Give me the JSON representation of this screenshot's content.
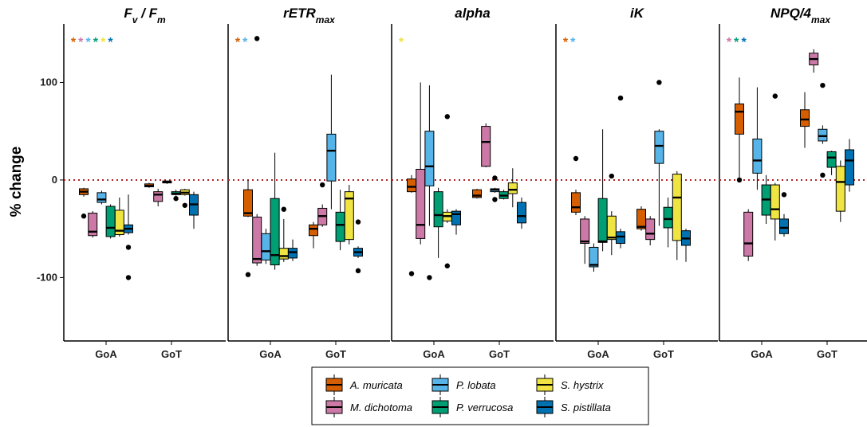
{
  "chart_data": {
    "type": "box",
    "ylabel": "% change",
    "ylim": [
      -165,
      160
    ],
    "yticks": [
      100,
      0,
      -100
    ],
    "categories": [
      "GoA",
      "GoT"
    ],
    "reference_line_y": 0,
    "colors": {
      "A. muricata": "#D55E00",
      "M. dichotoma": "#CC79A7",
      "P. lobata": "#56B4E9",
      "P. verrucosa": "#009E73",
      "S. hystrix": "#F0E442",
      "S. pistillata": "#0072B2"
    },
    "legend": [
      {
        "species": "A. muricata"
      },
      {
        "species": "M. dichotoma"
      },
      {
        "species": "P. lobata"
      },
      {
        "species": "P. verrucosa"
      },
      {
        "species": "S. hystrix"
      },
      {
        "species": "S. pistillata"
      }
    ],
    "panels": [
      {
        "title_main": "F",
        "title_sub1": "v",
        "title_mid": " / F",
        "title_sub2": "m",
        "significance": [
          "A. muricata",
          "M. dichotoma",
          "P. lobata",
          "P. verrucosa",
          "S. hystrix",
          "S. pistillata"
        ],
        "groups": {
          "GoA": [
            {
              "species": "A. muricata",
              "whisker_low": -17,
              "q1": -15,
              "median": -12,
              "q3": -9,
              "whisker_high": -8,
              "outliers": [
                -37
              ]
            },
            {
              "species": "M. dichotoma",
              "whisker_low": -59,
              "q1": -57,
              "median": -53,
              "q3": -34,
              "whisker_high": -32,
              "outliers": []
            },
            {
              "species": "P. lobata",
              "whisker_low": -25,
              "q1": -23,
              "median": -20,
              "q3": -13,
              "whisker_high": -11,
              "outliers": []
            },
            {
              "species": "P. verrucosa",
              "whisker_low": -60,
              "q1": -58,
              "median": -49,
              "q3": -27,
              "whisker_high": -25,
              "outliers": []
            },
            {
              "species": "S. hystrix",
              "whisker_low": -58,
              "q1": -56,
              "median": -52,
              "q3": -31,
              "whisker_high": -18,
              "outliers": []
            },
            {
              "species": "S. pistillata",
              "whisker_low": -56,
              "q1": -54,
              "median": -50,
              "q3": -46,
              "whisker_high": -15,
              "outliers": [
                -69,
                -100
              ]
            }
          ],
          "GoT": [
            {
              "species": "A. muricata",
              "whisker_low": -8,
              "q1": -7,
              "median": -6,
              "q3": -4,
              "whisker_high": -3,
              "outliers": []
            },
            {
              "species": "M. dichotoma",
              "whisker_low": -27,
              "q1": -22,
              "median": -15,
              "q3": -12,
              "whisker_high": -9,
              "outliers": []
            },
            {
              "species": "P. lobata",
              "whisker_low": -4,
              "q1": -3,
              "median": -2,
              "q3": -1,
              "whisker_high": -1,
              "outliers": []
            },
            {
              "species": "P. verrucosa",
              "whisker_low": -16,
              "q1": -15,
              "median": -14,
              "q3": -12,
              "whisker_high": -10,
              "outliers": [
                -19
              ]
            },
            {
              "species": "S. hystrix",
              "whisker_low": -16,
              "q1": -15,
              "median": -13,
              "q3": -10,
              "whisker_high": -9,
              "outliers": [
                -26
              ]
            },
            {
              "species": "S. pistillata",
              "whisker_low": -50,
              "q1": -36,
              "median": -25,
              "q3": -15,
              "whisker_high": -12,
              "outliers": []
            }
          ]
        }
      },
      {
        "title_main": "rETR",
        "title_sub1": "max",
        "title_mid": "",
        "title_sub2": "",
        "significance": [
          "A. muricata",
          "P. lobata"
        ],
        "groups": {
          "GoA": [
            {
              "species": "A. muricata",
              "whisker_low": -38,
              "q1": -37,
              "median": -34,
              "q3": -10,
              "whisker_high": 0,
              "outliers": [
                -97
              ]
            },
            {
              "species": "M. dichotoma",
              "whisker_low": -88,
              "q1": -85,
              "median": -81,
              "q3": -38,
              "whisker_high": -35,
              "outliers": [
                145
              ]
            },
            {
              "species": "P. lobata",
              "whisker_low": -86,
              "q1": -82,
              "median": -73,
              "q3": -55,
              "whisker_high": -50,
              "outliers": []
            },
            {
              "species": "P. verrucosa",
              "whisker_low": -92,
              "q1": -87,
              "median": -77,
              "q3": -19,
              "whisker_high": 28,
              "outliers": []
            },
            {
              "species": "S. hystrix",
              "whisker_low": -84,
              "q1": -81,
              "median": -78,
              "q3": -70,
              "whisker_high": -40,
              "outliers": [
                -30
              ]
            },
            {
              "species": "S. pistillata",
              "whisker_low": -83,
              "q1": -80,
              "median": -74,
              "q3": -70,
              "whisker_high": -61,
              "outliers": []
            }
          ],
          "GoT": [
            {
              "species": "A. muricata",
              "whisker_low": -70,
              "q1": -57,
              "median": -50,
              "q3": -46,
              "whisker_high": -43,
              "outliers": []
            },
            {
              "species": "M. dichotoma",
              "whisker_low": -48,
              "q1": -46,
              "median": -37,
              "q3": -29,
              "whisker_high": -25,
              "outliers": [
                -5
              ]
            },
            {
              "species": "P. lobata",
              "whisker_low": -30,
              "q1": -1,
              "median": 30,
              "q3": 47,
              "whisker_high": 108,
              "outliers": []
            },
            {
              "species": "P. verrucosa",
              "whisker_low": -72,
              "q1": -63,
              "median": -46,
              "q3": -33,
              "whisker_high": -10,
              "outliers": []
            },
            {
              "species": "S. hystrix",
              "whisker_low": -66,
              "q1": -61,
              "median": -19,
              "q3": -12,
              "whisker_high": -5,
              "outliers": []
            },
            {
              "species": "S. pistillata",
              "whisker_low": -80,
              "q1": -78,
              "median": -74,
              "q3": -70,
              "whisker_high": -68,
              "outliers": [
                -43,
                -93
              ]
            }
          ]
        }
      },
      {
        "title_main": "alpha",
        "title_sub1": "",
        "title_mid": "",
        "title_sub2": "",
        "significance": [
          "S. hystrix"
        ],
        "groups": {
          "GoA": [
            {
              "species": "A. muricata",
              "whisker_low": -13,
              "q1": -12,
              "median": -7,
              "q3": 1,
              "whisker_high": 5,
              "outliers": [
                -96
              ]
            },
            {
              "species": "M. dichotoma",
              "whisker_low": -66,
              "q1": -60,
              "median": -46,
              "q3": 11,
              "whisker_high": 100,
              "outliers": []
            },
            {
              "species": "P. lobata",
              "whisker_low": -47,
              "q1": -6,
              "median": 14,
              "q3": 50,
              "whisker_high": 97,
              "outliers": [
                -100
              ]
            },
            {
              "species": "P. verrucosa",
              "whisker_low": -80,
              "q1": -48,
              "median": -36,
              "q3": -12,
              "whisker_high": -8,
              "outliers": []
            },
            {
              "species": "S. hystrix",
              "whisker_low": -44,
              "q1": -42,
              "median": -37,
              "q3": -33,
              "whisker_high": -30,
              "outliers": [
                -88,
                65
              ]
            },
            {
              "species": "S. pistillata",
              "whisker_low": -56,
              "q1": -46,
              "median": -35,
              "q3": -32,
              "whisker_high": -30,
              "outliers": []
            }
          ],
          "GoT": [
            {
              "species": "A. muricata",
              "whisker_low": -19,
              "q1": -18,
              "median": -16,
              "q3": -10,
              "whisker_high": -9,
              "outliers": []
            },
            {
              "species": "M. dichotoma",
              "whisker_low": 13,
              "q1": 14,
              "median": 39,
              "q3": 55,
              "whisker_high": 58,
              "outliers": []
            },
            {
              "species": "P. lobata",
              "whisker_low": -13,
              "q1": -12,
              "median": -10,
              "q3": -9,
              "whisker_high": -8,
              "outliers": [
                -20,
                2
              ]
            },
            {
              "species": "P. verrucosa",
              "whisker_low": -20,
              "q1": -19,
              "median": -16,
              "q3": -12,
              "whisker_high": -10,
              "outliers": []
            },
            {
              "species": "S. hystrix",
              "whisker_low": -28,
              "q1": -14,
              "median": -10,
              "q3": -3,
              "whisker_high": 12,
              "outliers": []
            },
            {
              "species": "S. pistillata",
              "whisker_low": -50,
              "q1": -44,
              "median": -37,
              "q3": -23,
              "whisker_high": -18,
              "outliers": []
            }
          ]
        }
      },
      {
        "title_main": "iK",
        "title_sub1": "",
        "title_mid": "",
        "title_sub2": "",
        "significance": [
          "A. muricata",
          "P. lobata"
        ],
        "groups": {
          "GoA": [
            {
              "species": "A. muricata",
              "whisker_low": -36,
              "q1": -33,
              "median": -28,
              "q3": -13,
              "whisker_high": -10,
              "outliers": [
                22
              ]
            },
            {
              "species": "M. dichotoma",
              "whisker_low": -86,
              "q1": -65,
              "median": -63,
              "q3": -40,
              "whisker_high": -37,
              "outliers": []
            },
            {
              "species": "P. lobata",
              "whisker_low": -94,
              "q1": -89,
              "median": -87,
              "q3": -69,
              "whisker_high": -65,
              "outliers": []
            },
            {
              "species": "P. verrucosa",
              "whisker_low": -73,
              "q1": -64,
              "median": -63,
              "q3": -19,
              "whisker_high": 52,
              "outliers": []
            },
            {
              "species": "S. hystrix",
              "whisker_low": -77,
              "q1": -61,
              "median": -59,
              "q3": -37,
              "whisker_high": -32,
              "outliers": [
                4
              ]
            },
            {
              "species": "S. pistillata",
              "whisker_low": -70,
              "q1": -65,
              "median": -58,
              "q3": -53,
              "whisker_high": -50,
              "outliers": [
                84
              ]
            }
          ],
          "GoT": [
            {
              "species": "A. muricata",
              "whisker_low": -52,
              "q1": -50,
              "median": -48,
              "q3": -30,
              "whisker_high": -27,
              "outliers": []
            },
            {
              "species": "M. dichotoma",
              "whisker_low": -67,
              "q1": -61,
              "median": -55,
              "q3": -40,
              "whisker_high": -37,
              "outliers": []
            },
            {
              "species": "P. lobata",
              "whisker_low": -47,
              "q1": 17,
              "median": 35,
              "q3": 50,
              "whisker_high": 52,
              "outliers": [
                100
              ]
            },
            {
              "species": "P. verrucosa",
              "whisker_low": -69,
              "q1": -49,
              "median": -40,
              "q3": -28,
              "whisker_high": -18,
              "outliers": []
            },
            {
              "species": "S. hystrix",
              "whisker_low": -82,
              "q1": -62,
              "median": -18,
              "q3": 6,
              "whisker_high": 9,
              "outliers": []
            },
            {
              "species": "S. pistillata",
              "whisker_low": -84,
              "q1": -67,
              "median": -60,
              "q3": -52,
              "whisker_high": -50,
              "outliers": []
            }
          ]
        }
      },
      {
        "title_main": "NPQ/4",
        "title_sub1": "max",
        "title_mid": "",
        "title_sub2": "",
        "significance": [
          "M. dichotoma",
          "P. verrucosa",
          "S. pistillata"
        ],
        "groups": {
          "GoA": [
            {
              "species": "A. muricata",
              "whisker_low": 0,
              "q1": 47,
              "median": 70,
              "q3": 78,
              "whisker_high": 105,
              "outliers": [
                0
              ]
            },
            {
              "species": "M. dichotoma",
              "whisker_low": -83,
              "q1": -78,
              "median": -65,
              "q3": -33,
              "whisker_high": -30,
              "outliers": []
            },
            {
              "species": "P. lobata",
              "whisker_low": -10,
              "q1": 7,
              "median": 20,
              "q3": 42,
              "whisker_high": 95,
              "outliers": []
            },
            {
              "species": "P. verrucosa",
              "whisker_low": -45,
              "q1": -36,
              "median": -20,
              "q3": -5,
              "whisker_high": 5,
              "outliers": []
            },
            {
              "species": "S. hystrix",
              "whisker_low": -62,
              "q1": -40,
              "median": -30,
              "q3": -5,
              "whisker_high": -3,
              "outliers": [
                86
              ]
            },
            {
              "species": "S. pistillata",
              "whisker_low": -58,
              "q1": -55,
              "median": -49,
              "q3": -40,
              "whisker_high": -35,
              "outliers": [
                -15
              ]
            }
          ],
          "GoT": [
            {
              "species": "A. muricata",
              "whisker_low": 33,
              "q1": 55,
              "median": 62,
              "q3": 72,
              "whisker_high": 90,
              "outliers": []
            },
            {
              "species": "M. dichotoma",
              "whisker_low": 110,
              "q1": 118,
              "median": 124,
              "q3": 130,
              "whisker_high": 134,
              "outliers": []
            },
            {
              "species": "P. lobata",
              "whisker_low": 37,
              "q1": 40,
              "median": 45,
              "q3": 52,
              "whisker_high": 56,
              "outliers": [
                97,
                5
              ]
            },
            {
              "species": "P. verrucosa",
              "whisker_low": 5,
              "q1": 13,
              "median": 23,
              "q3": 29,
              "whisker_high": 30,
              "outliers": []
            },
            {
              "species": "S. hystrix",
              "whisker_low": -43,
              "q1": -32,
              "median": -2,
              "q3": 14,
              "whisker_high": 20,
              "outliers": []
            },
            {
              "species": "S. pistillata",
              "whisker_low": -12,
              "q1": -5,
              "median": 20,
              "q3": 31,
              "whisker_high": 42,
              "outliers": []
            }
          ]
        }
      }
    ]
  }
}
